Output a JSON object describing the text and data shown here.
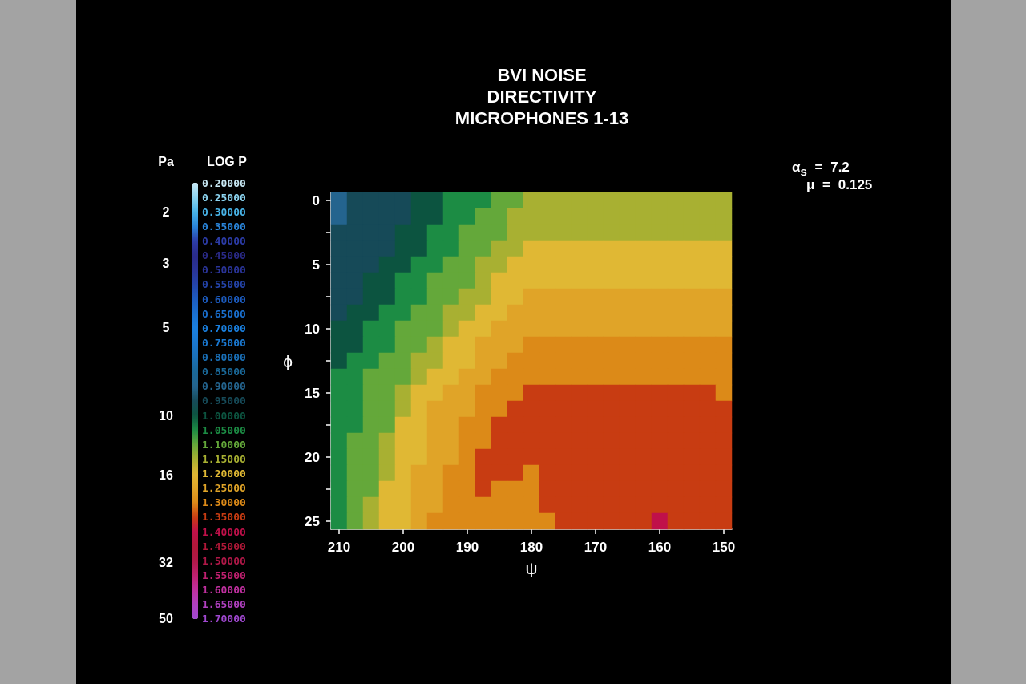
{
  "chart_data": {
    "type": "heatmap",
    "title": "BVI NOISE\nDIRECTIVITY\nMICROPHONES 1-13",
    "xlabel": "ψ",
    "ylabel": "ϕ",
    "clabel": "LOG P",
    "annotations": [
      "α$_{s}$ = 7.2",
      "μ = 0.125",
      "Pa",
      "2",
      "3",
      "5",
      "10",
      "16",
      "32",
      "50"
    ],
    "categories": [
      "210",
      null,
      null,
      null,
      "200",
      null,
      null,
      null,
      "190",
      null,
      null,
      null,
      "180",
      null,
      null,
      null,
      "170",
      null,
      null,
      null,
      "160",
      null,
      null,
      null,
      "150"
    ],
    "y_categories": [
      "0",
      null,
      null,
      null,
      "5",
      null,
      null,
      null,
      "10",
      null,
      null,
      null,
      "15",
      null,
      null,
      null,
      "20",
      null,
      null,
      null,
      "25"
    ],
    "cells": [
      [
        0.9,
        0.95,
        0.95,
        0.95,
        0.95,
        1,
        1,
        1.05,
        1.05,
        1.05,
        1.1,
        1.1,
        1.15,
        1.15,
        1.15,
        1.15,
        1.15,
        1.15,
        1.15,
        1.15,
        1.15,
        1.15,
        1.15,
        1.15,
        1.15
      ],
      [
        0.9,
        0.95,
        0.95,
        0.95,
        0.95,
        1,
        1,
        1.05,
        1.05,
        1.1,
        1.1,
        1.15,
        1.15,
        1.15,
        1.15,
        1.15,
        1.15,
        1.15,
        1.15,
        1.15,
        1.15,
        1.15,
        1.15,
        1.15,
        1.15
      ],
      [
        0.95,
        0.95,
        0.95,
        0.95,
        1,
        1,
        1.05,
        1.05,
        1.1,
        1.1,
        1.1,
        1.15,
        1.15,
        1.15,
        1.15,
        1.15,
        1.15,
        1.15,
        1.15,
        1.15,
        1.15,
        1.15,
        1.15,
        1.15,
        1.15
      ],
      [
        0.95,
        0.95,
        0.95,
        0.95,
        1,
        1,
        1.05,
        1.05,
        1.1,
        1.1,
        1.15,
        1.15,
        1.2,
        1.2,
        1.2,
        1.2,
        1.2,
        1.2,
        1.2,
        1.2,
        1.2,
        1.2,
        1.2,
        1.2,
        1.2
      ],
      [
        0.95,
        0.95,
        0.95,
        1,
        1,
        1.05,
        1.05,
        1.1,
        1.1,
        1.15,
        1.15,
        1.2,
        1.2,
        1.2,
        1.2,
        1.2,
        1.2,
        1.2,
        1.2,
        1.2,
        1.2,
        1.2,
        1.2,
        1.2,
        1.2
      ],
      [
        0.95,
        0.95,
        1,
        1,
        1.05,
        1.05,
        1.1,
        1.1,
        1.1,
        1.15,
        1.2,
        1.2,
        1.2,
        1.2,
        1.2,
        1.2,
        1.2,
        1.2,
        1.2,
        1.2,
        1.2,
        1.2,
        1.2,
        1.2,
        1.2
      ],
      [
        0.95,
        0.95,
        1,
        1,
        1.05,
        1.05,
        1.1,
        1.1,
        1.15,
        1.15,
        1.2,
        1.2,
        1.25,
        1.25,
        1.25,
        1.25,
        1.25,
        1.25,
        1.25,
        1.25,
        1.25,
        1.25,
        1.25,
        1.25,
        1.25
      ],
      [
        0.95,
        1,
        1,
        1.05,
        1.05,
        1.1,
        1.1,
        1.15,
        1.15,
        1.2,
        1.2,
        1.25,
        1.25,
        1.25,
        1.25,
        1.25,
        1.25,
        1.25,
        1.25,
        1.25,
        1.25,
        1.25,
        1.25,
        1.25,
        1.25
      ],
      [
        1,
        1,
        1.05,
        1.05,
        1.1,
        1.1,
        1.1,
        1.15,
        1.2,
        1.2,
        1.25,
        1.25,
        1.25,
        1.25,
        1.25,
        1.25,
        1.25,
        1.25,
        1.25,
        1.25,
        1.25,
        1.25,
        1.25,
        1.25,
        1.25
      ],
      [
        1,
        1,
        1.05,
        1.05,
        1.1,
        1.1,
        1.15,
        1.2,
        1.2,
        1.25,
        1.25,
        1.25,
        1.3,
        1.3,
        1.3,
        1.3,
        1.3,
        1.3,
        1.3,
        1.3,
        1.3,
        1.3,
        1.3,
        1.3,
        1.3
      ],
      [
        1,
        1.05,
        1.05,
        1.1,
        1.1,
        1.15,
        1.15,
        1.2,
        1.2,
        1.25,
        1.25,
        1.3,
        1.3,
        1.3,
        1.3,
        1.3,
        1.3,
        1.3,
        1.3,
        1.3,
        1.3,
        1.3,
        1.3,
        1.3,
        1.3
      ],
      [
        1.05,
        1.05,
        1.1,
        1.1,
        1.1,
        1.15,
        1.2,
        1.2,
        1.25,
        1.25,
        1.3,
        1.3,
        1.3,
        1.3,
        1.3,
        1.3,
        1.3,
        1.3,
        1.3,
        1.3,
        1.3,
        1.3,
        1.3,
        1.3,
        1.3
      ],
      [
        1.05,
        1.05,
        1.1,
        1.1,
        1.15,
        1.2,
        1.2,
        1.25,
        1.25,
        1.3,
        1.3,
        1.3,
        1.35,
        1.35,
        1.35,
        1.35,
        1.35,
        1.35,
        1.35,
        1.35,
        1.35,
        1.35,
        1.35,
        1.35,
        1.3
      ],
      [
        1.05,
        1.05,
        1.1,
        1.1,
        1.15,
        1.2,
        1.25,
        1.25,
        1.25,
        1.3,
        1.3,
        1.35,
        1.35,
        1.35,
        1.35,
        1.35,
        1.35,
        1.35,
        1.35,
        1.35,
        1.35,
        1.35,
        1.35,
        1.35,
        1.35
      ],
      [
        1.05,
        1.05,
        1.1,
        1.1,
        1.2,
        1.2,
        1.25,
        1.25,
        1.3,
        1.3,
        1.35,
        1.35,
        1.35,
        1.35,
        1.35,
        1.35,
        1.35,
        1.35,
        1.35,
        1.35,
        1.35,
        1.35,
        1.35,
        1.35,
        1.35
      ],
      [
        1.05,
        1.1,
        1.1,
        1.15,
        1.2,
        1.2,
        1.25,
        1.25,
        1.3,
        1.3,
        1.35,
        1.35,
        1.35,
        1.35,
        1.35,
        1.35,
        1.35,
        1.35,
        1.35,
        1.35,
        1.35,
        1.35,
        1.35,
        1.35,
        1.35
      ],
      [
        1.05,
        1.1,
        1.1,
        1.15,
        1.2,
        1.2,
        1.25,
        1.25,
        1.3,
        1.35,
        1.35,
        1.35,
        1.35,
        1.35,
        1.35,
        1.35,
        1.35,
        1.35,
        1.35,
        1.35,
        1.35,
        1.35,
        1.35,
        1.35,
        1.35
      ],
      [
        1.05,
        1.1,
        1.1,
        1.15,
        1.2,
        1.25,
        1.25,
        1.3,
        1.3,
        1.35,
        1.35,
        1.35,
        1.3,
        1.35,
        1.35,
        1.35,
        1.35,
        1.35,
        1.35,
        1.35,
        1.35,
        1.35,
        1.35,
        1.35,
        1.35
      ],
      [
        1.05,
        1.1,
        1.1,
        1.2,
        1.2,
        1.25,
        1.25,
        1.3,
        1.3,
        1.35,
        1.3,
        1.3,
        1.3,
        1.35,
        1.35,
        1.35,
        1.35,
        1.35,
        1.35,
        1.35,
        1.35,
        1.35,
        1.35,
        1.35,
        1.35
      ],
      [
        1.05,
        1.1,
        1.15,
        1.2,
        1.2,
        1.25,
        1.25,
        1.3,
        1.3,
        1.3,
        1.3,
        1.3,
        1.3,
        1.35,
        1.35,
        1.35,
        1.35,
        1.35,
        1.35,
        1.35,
        1.35,
        1.35,
        1.35,
        1.35,
        1.35
      ],
      [
        1.05,
        1.1,
        1.15,
        1.2,
        1.2,
        1.25,
        1.3,
        1.3,
        1.3,
        1.3,
        1.3,
        1.3,
        1.3,
        1.3,
        1.35,
        1.35,
        1.35,
        1.35,
        1.35,
        1.35,
        1.4,
        1.35,
        1.35,
        1.35,
        1.35
      ]
    ],
    "clim": [
      0.2,
      1.7
    ],
    "cticks": [
      {
        "value": 0.2,
        "label": "0.20000"
      },
      {
        "value": 0.25,
        "label": "0.25000"
      },
      {
        "value": 0.3,
        "label": "0.30000"
      },
      {
        "value": 0.35,
        "label": "0.35000"
      },
      {
        "value": 0.4,
        "label": "0.40000"
      },
      {
        "value": 0.45,
        "label": "0.45000"
      },
      {
        "value": 0.5,
        "label": "0.50000"
      },
      {
        "value": 0.55,
        "label": "0.55000"
      },
      {
        "value": 0.6,
        "label": "0.60000"
      },
      {
        "value": 0.65,
        "label": "0.65000"
      },
      {
        "value": 0.7,
        "label": "0.70000"
      },
      {
        "value": 0.75,
        "label": "0.75000"
      },
      {
        "value": 0.8,
        "label": "0.80000"
      },
      {
        "value": 0.85,
        "label": "0.85000"
      },
      {
        "value": 0.9,
        "label": "0.90000"
      },
      {
        "value": 0.95,
        "label": "0.95000"
      },
      {
        "value": 1,
        "label": "1.00000"
      },
      {
        "value": 1.05,
        "label": "1.05000"
      },
      {
        "value": 1.1,
        "label": "1.10000"
      },
      {
        "value": 1.15,
        "label": "1.15000"
      },
      {
        "value": 1.2,
        "label": "1.20000"
      },
      {
        "value": 1.25,
        "label": "1.25000"
      },
      {
        "value": 1.3,
        "label": "1.30000"
      },
      {
        "value": 1.35,
        "label": "1.35000"
      },
      {
        "value": 1.4,
        "label": "1.40000"
      },
      {
        "value": 1.45,
        "label": "1.45000"
      },
      {
        "value": 1.5,
        "label": "1.50000"
      },
      {
        "value": 1.55,
        "label": "1.55000"
      },
      {
        "value": 1.6,
        "label": "1.60000"
      },
      {
        "value": 1.65,
        "label": "1.65000"
      },
      {
        "value": 1.7,
        "label": "1.70000"
      }
    ],
    "colors": [
      "#c8e8f4",
      "#8cd4f0",
      "#48b4e8",
      "#2a84d8",
      "#2c3ca8",
      "#2a2a88",
      "#2a3498",
      "#2444aa",
      "#1c5cc0",
      "#1a70d0",
      "#1a80e0",
      "#1a78d0",
      "#1a70b8",
      "#1a6898",
      "#24648e",
      "#164a58",
      "#0c5440",
      "#1c8c44",
      "#64a83a",
      "#a8b032",
      "#e0b834",
      "#e0a428",
      "#dc8a18",
      "#c83c12",
      "#c0104a",
      "#b01838",
      "#b01848",
      "#c02070",
      "#c030a0",
      "#b040c0",
      "#a048d0"
    ]
  }
}
